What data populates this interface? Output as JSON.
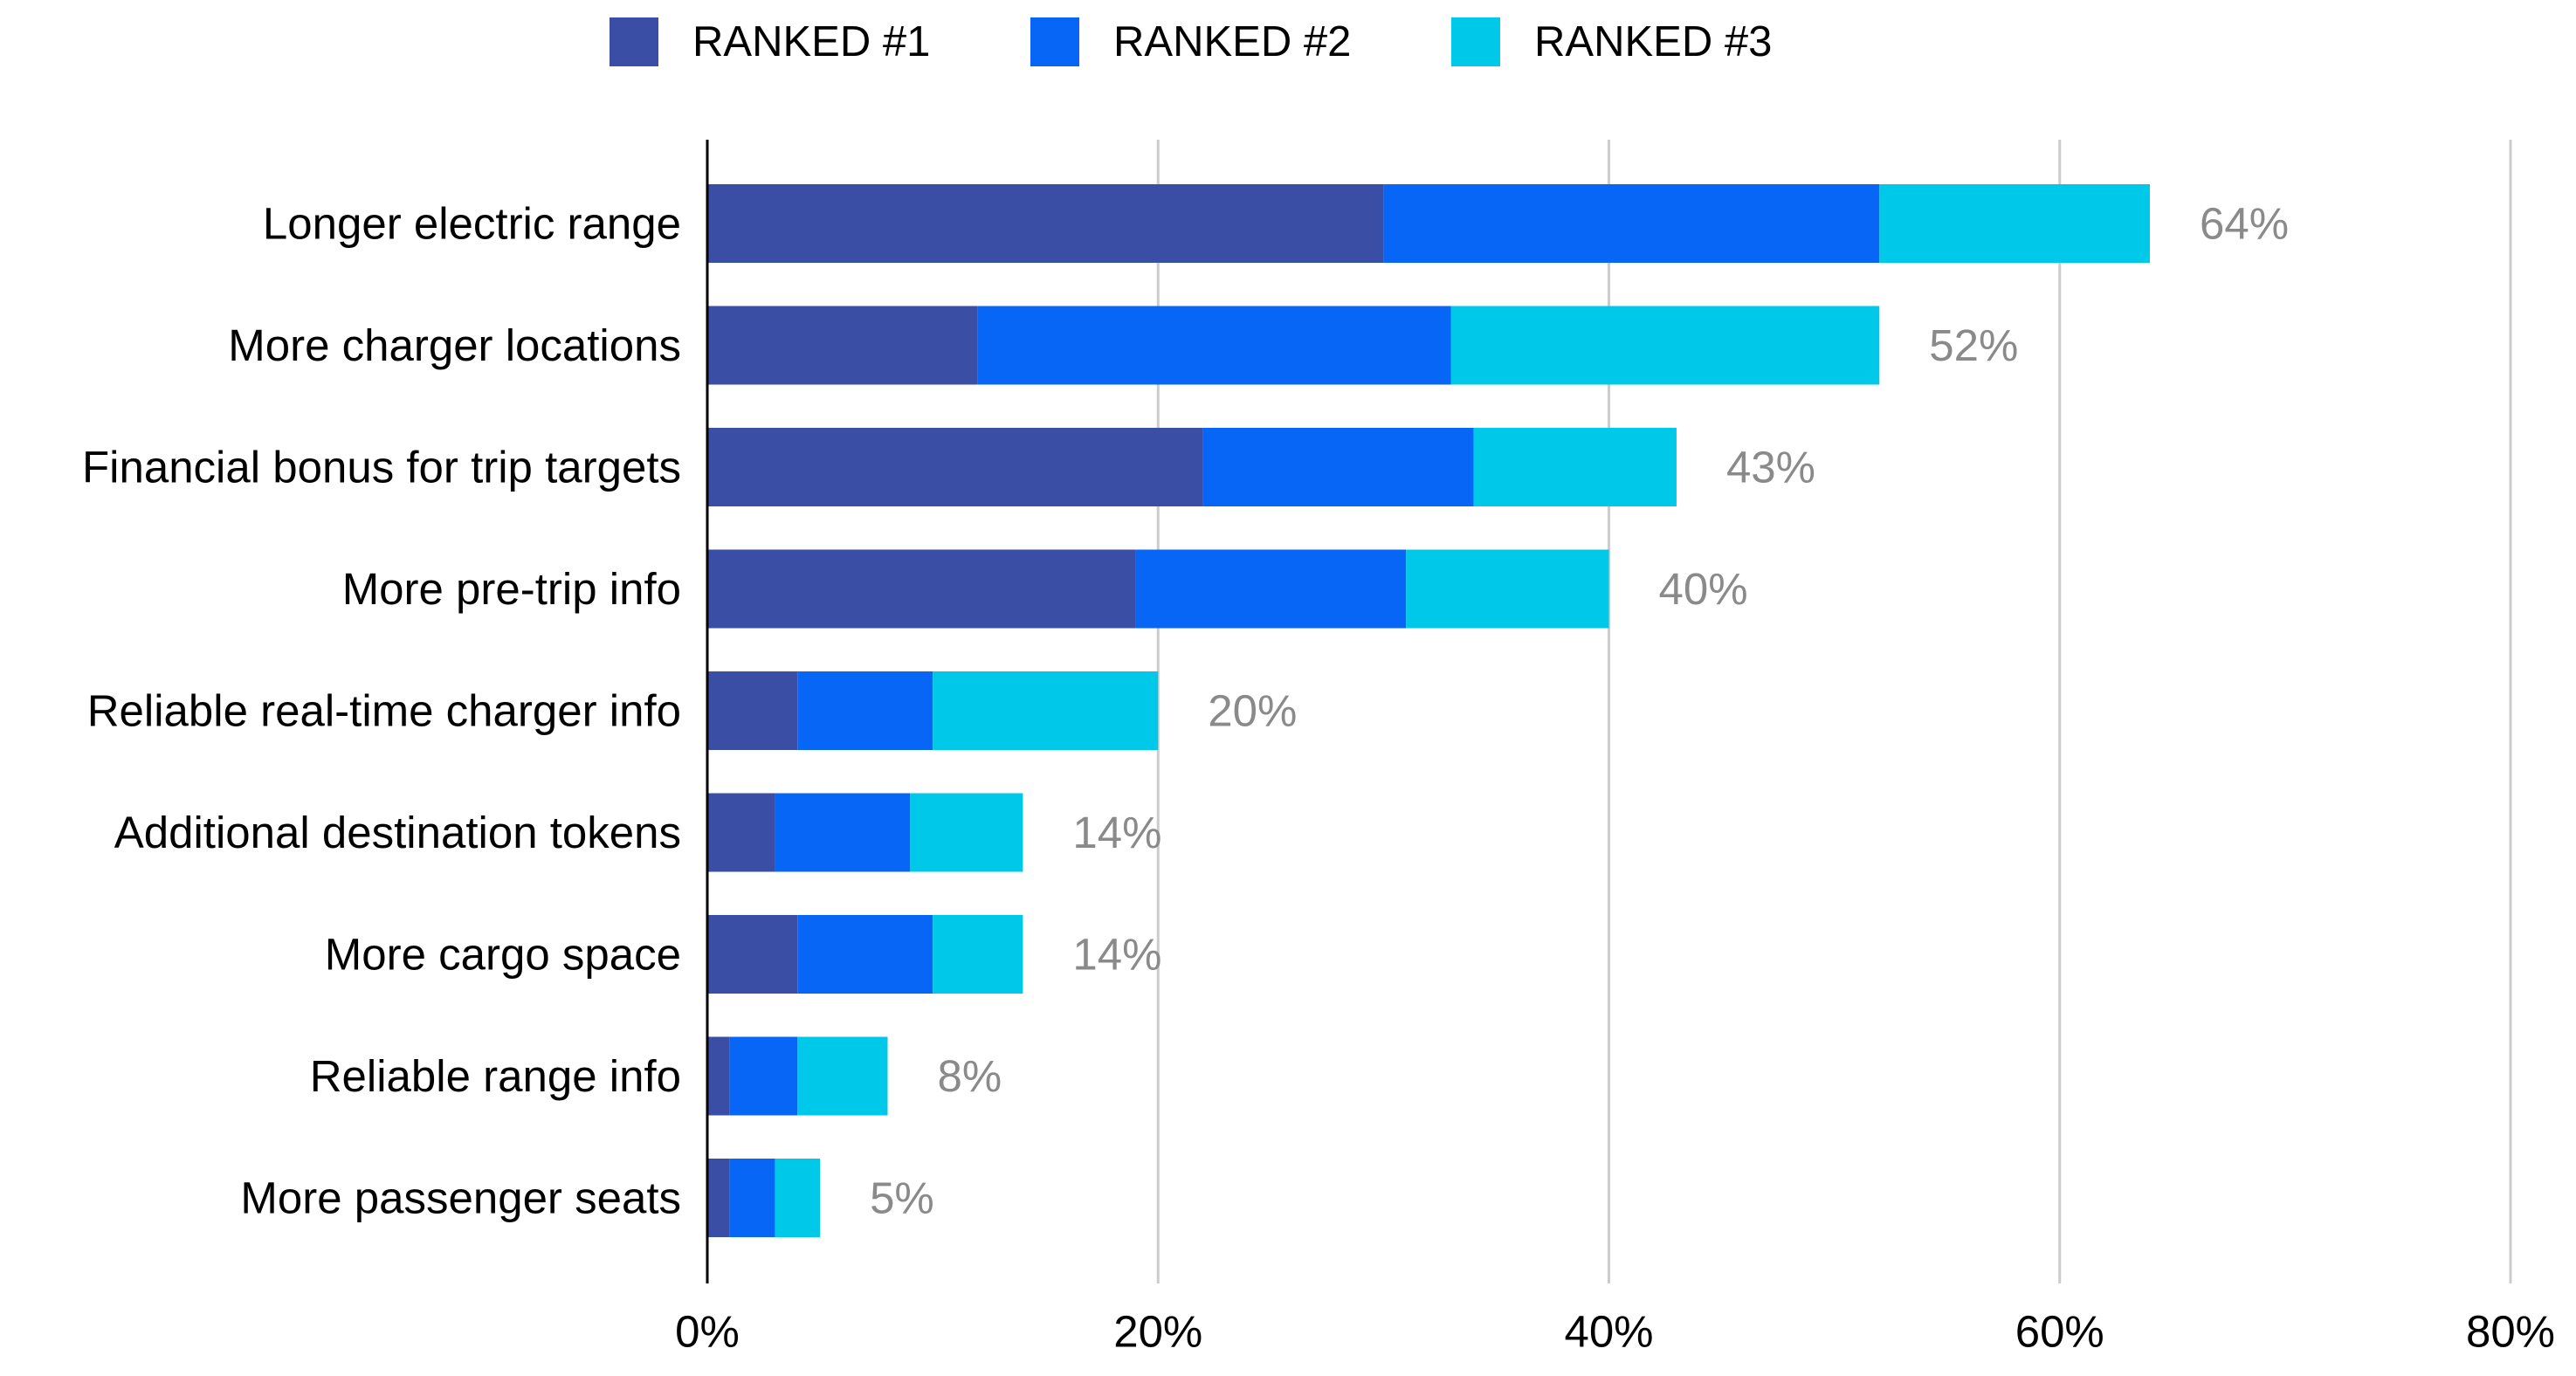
{
  "chart_data": {
    "type": "bar",
    "orientation": "horizontal",
    "stacked": true,
    "categories": [
      "Longer electric range",
      "More charger locations",
      "Financial bonus for trip targets",
      "More pre-trip info",
      "Reliable real-time charger info",
      "Additional destination tokens",
      "More cargo space",
      "Reliable range info",
      "More passenger seats"
    ],
    "series": [
      {
        "name": "RANKED #1",
        "color": "#3a4ea6",
        "values": [
          30,
          12,
          22,
          19,
          4,
          3,
          4,
          1,
          1
        ]
      },
      {
        "name": "RANKED #2",
        "color": "#0866f7",
        "values": [
          22,
          21,
          12,
          12,
          6,
          6,
          6,
          3,
          2
        ]
      },
      {
        "name": "RANKED #3",
        "color": "#00c8e8",
        "values": [
          12,
          19,
          9,
          9,
          10,
          5,
          4,
          4,
          2
        ]
      }
    ],
    "totals": [
      "64%",
      "52%",
      "43%",
      "40%",
      "20%",
      "14%",
      "14%",
      "8%",
      "5%"
    ],
    "x_ticks": [
      {
        "value": 0,
        "label": "0%"
      },
      {
        "value": 20,
        "label": "20%"
      },
      {
        "value": 40,
        "label": "40%"
      },
      {
        "value": 60,
        "label": "60%"
      },
      {
        "value": 80,
        "label": "80%"
      }
    ],
    "xlim": [
      0,
      80
    ],
    "title": "",
    "xlabel": "",
    "ylabel": "",
    "grid": "vertical",
    "legend_position": "top",
    "total_label_color": "#8a8a8a",
    "grid_color": "#cccccc",
    "axis_color": "#000000"
  }
}
